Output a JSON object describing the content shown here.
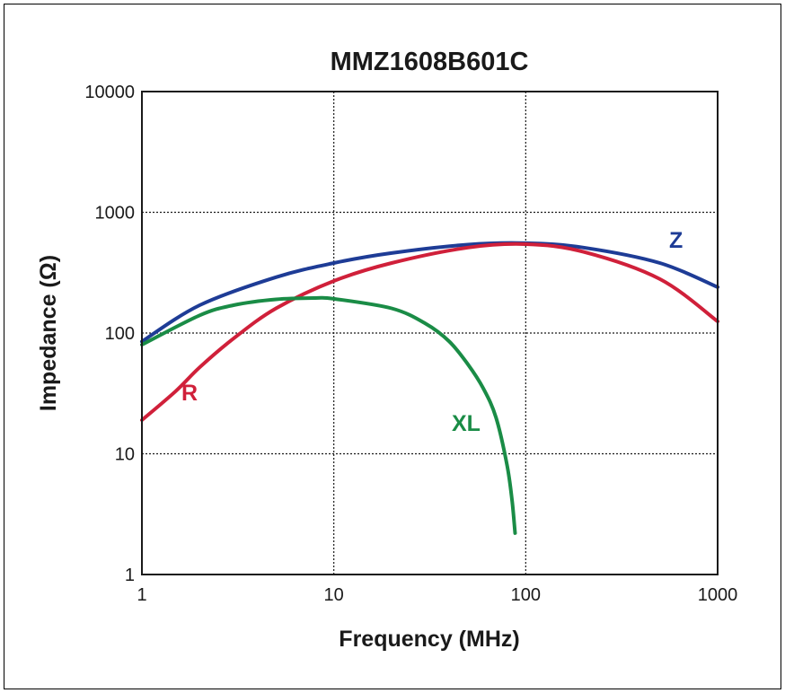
{
  "chart_data": {
    "type": "line",
    "title": "MMZ1608B601C",
    "xlabel": "Frequency (MHz)",
    "ylabel": "Impedance (Ω)",
    "x_scale": "log",
    "y_scale": "log",
    "xlim": [
      1,
      1000
    ],
    "ylim": [
      1,
      10000
    ],
    "x_ticks": [
      "1",
      "10",
      "100",
      "1000"
    ],
    "y_ticks": [
      "1",
      "10",
      "100",
      "1000",
      "10000"
    ],
    "grid": true,
    "legend": "inline labels",
    "series": [
      {
        "name": "Z",
        "color": "#1e3c96",
        "points": [
          [
            1,
            85
          ],
          [
            2,
            170
          ],
          [
            5,
            290
          ],
          [
            10,
            380
          ],
          [
            20,
            460
          ],
          [
            50,
            540
          ],
          [
            100,
            555
          ],
          [
            200,
            510
          ],
          [
            500,
            380
          ],
          [
            1000,
            240
          ]
        ]
      },
      {
        "name": "R",
        "color": "#d0203a",
        "points": [
          [
            1,
            19
          ],
          [
            1.5,
            33
          ],
          [
            2,
            52
          ],
          [
            3,
            90
          ],
          [
            5,
            160
          ],
          [
            10,
            270
          ],
          [
            20,
            380
          ],
          [
            50,
            510
          ],
          [
            100,
            545
          ],
          [
            200,
            470
          ],
          [
            500,
            280
          ],
          [
            1000,
            125
          ]
        ]
      },
      {
        "name": "XL",
        "color": "#1a8c46",
        "points": [
          [
            1,
            80
          ],
          [
            2,
            140
          ],
          [
            3,
            170
          ],
          [
            5,
            190
          ],
          [
            8,
            195
          ],
          [
            10,
            192
          ],
          [
            20,
            160
          ],
          [
            30,
            120
          ],
          [
            40,
            85
          ],
          [
            50,
            55
          ],
          [
            60,
            35
          ],
          [
            70,
            20
          ],
          [
            80,
            8
          ],
          [
            85,
            4
          ],
          [
            88,
            2.2
          ]
        ]
      }
    ]
  }
}
